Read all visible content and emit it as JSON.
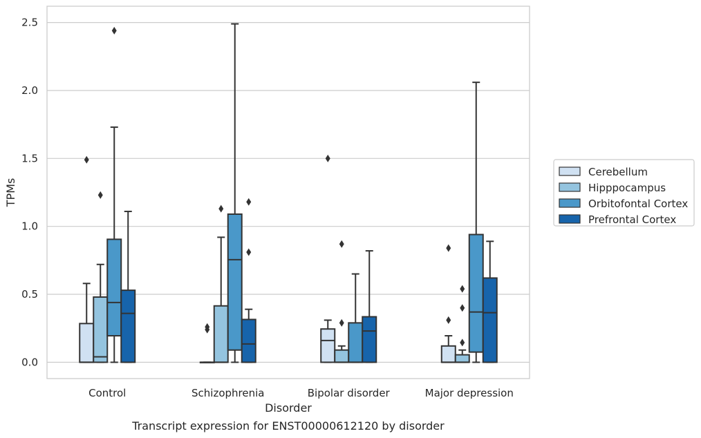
{
  "caption": "Transcript expression for ENST00000612120 by disorder",
  "chart_data": {
    "type": "box",
    "xlabel": "Disorder",
    "ylabel": "TPMs",
    "ylim": [
      -0.12,
      2.62
    ],
    "yticks": [
      0.0,
      0.5,
      1.0,
      1.5,
      2.0,
      2.5
    ],
    "ytick_labels": [
      "0.0",
      "0.5",
      "1.0",
      "1.5",
      "2.0",
      "2.5"
    ],
    "categories": [
      "Control",
      "Schizophrenia",
      "Bipolar disorder",
      "Major depression"
    ],
    "grid": "horizontal",
    "legend_position": "right",
    "series": [
      {
        "name": "Cerebellum",
        "color": "#d0e1f2",
        "boxes": [
          {
            "min": 0.0,
            "q1": 0.0,
            "median": 0.0,
            "q3": 0.285,
            "max": 0.58,
            "outliers": [
              1.49
            ]
          },
          {
            "min": 0.0,
            "q1": 0.0,
            "median": 0.0,
            "q3": 0.0,
            "max": 0.0,
            "outliers": [
              0.24,
              0.26
            ]
          },
          {
            "min": 0.0,
            "q1": 0.0,
            "median": 0.16,
            "q3": 0.245,
            "max": 0.31,
            "outliers": [
              1.5
            ]
          },
          {
            "min": 0.0,
            "q1": 0.0,
            "median": 0.0,
            "q3": 0.12,
            "max": 0.195,
            "outliers": [
              0.31,
              0.84
            ]
          }
        ]
      },
      {
        "name": "Hipppocampus",
        "color": "#94c4df",
        "boxes": [
          {
            "min": 0.0,
            "q1": 0.0,
            "median": 0.04,
            "q3": 0.48,
            "max": 0.72,
            "outliers": [
              1.23
            ]
          },
          {
            "min": 0.0,
            "q1": 0.0,
            "median": 0.0,
            "q3": 0.415,
            "max": 0.92,
            "outliers": [
              1.13
            ]
          },
          {
            "min": 0.0,
            "q1": 0.0,
            "median": 0.0,
            "q3": 0.09,
            "max": 0.12,
            "outliers": [
              0.29,
              0.87
            ]
          },
          {
            "min": 0.0,
            "q1": 0.0,
            "median": 0.0,
            "q3": 0.055,
            "max": 0.09,
            "outliers": [
              0.145,
              0.4,
              0.54
            ]
          }
        ]
      },
      {
        "name": "Orbitofontal Cortex",
        "color": "#4a98c9",
        "boxes": [
          {
            "min": 0.0,
            "q1": 0.195,
            "median": 0.44,
            "q3": 0.905,
            "max": 1.73,
            "outliers": [
              2.44
            ]
          },
          {
            "min": 0.0,
            "q1": 0.09,
            "median": 0.755,
            "q3": 1.09,
            "max": 2.49,
            "outliers": []
          },
          {
            "min": 0.0,
            "q1": 0.0,
            "median": 0.0,
            "q3": 0.29,
            "max": 0.65,
            "outliers": []
          },
          {
            "min": 0.0,
            "q1": 0.075,
            "median": 0.37,
            "q3": 0.94,
            "max": 2.06,
            "outliers": []
          }
        ]
      },
      {
        "name": "Prefrontal Cortex",
        "color": "#1764ab",
        "boxes": [
          {
            "min": 0.0,
            "q1": 0.0,
            "median": 0.36,
            "q3": 0.53,
            "max": 1.11,
            "outliers": []
          },
          {
            "min": 0.0,
            "q1": 0.0,
            "median": 0.135,
            "q3": 0.315,
            "max": 0.39,
            "outliers": [
              0.81,
              1.18
            ]
          },
          {
            "min": 0.0,
            "q1": 0.0,
            "median": 0.23,
            "q3": 0.335,
            "max": 0.82,
            "outliers": []
          },
          {
            "min": 0.0,
            "q1": 0.0,
            "median": 0.365,
            "q3": 0.62,
            "max": 0.89,
            "outliers": []
          }
        ]
      }
    ]
  }
}
